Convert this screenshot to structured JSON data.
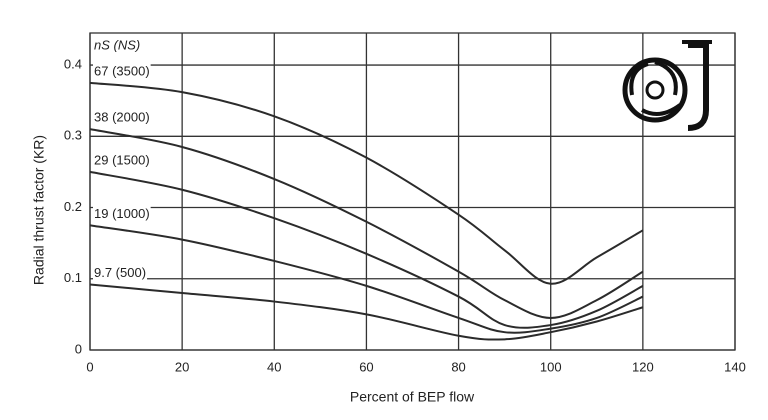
{
  "chart_data": {
    "type": "line",
    "x_label": "Percent of BEP flow",
    "y_label": "Radial thrust factor (KR)",
    "legend_title": "nS (NS)",
    "x": [
      0,
      20,
      40,
      60,
      80,
      90,
      100,
      110,
      120
    ],
    "series": [
      {
        "name": "67 (3500)",
        "color": "#2b2b2b",
        "values": [
          0.375,
          0.362,
          0.328,
          0.27,
          0.19,
          0.14,
          0.093,
          0.13,
          0.168
        ]
      },
      {
        "name": "38 (2000)",
        "color": "#2b2b2b",
        "values": [
          0.31,
          0.285,
          0.24,
          0.18,
          0.11,
          0.07,
          0.045,
          0.07,
          0.11
        ]
      },
      {
        "name": "29 (1500)",
        "color": "#2b2b2b",
        "values": [
          0.25,
          0.225,
          0.185,
          0.135,
          0.075,
          0.035,
          0.035,
          0.055,
          0.09
        ]
      },
      {
        "name": "19 (1000)",
        "color": "#2b2b2b",
        "values": [
          0.175,
          0.155,
          0.125,
          0.09,
          0.045,
          0.025,
          0.03,
          0.045,
          0.075
        ]
      },
      {
        "name": "9.7 (500)",
        "color": "#2b2b2b",
        "values": [
          0.092,
          0.08,
          0.068,
          0.05,
          0.02,
          0.015,
          0.025,
          0.04,
          0.06
        ]
      }
    ],
    "xlim": [
      0,
      140
    ],
    "xticks": [
      0,
      20,
      40,
      60,
      80,
      100,
      120,
      140
    ],
    "ylim": [
      0,
      0.445
    ],
    "yticks": [
      0,
      0.1,
      0.2,
      0.3,
      0.4
    ],
    "grid": true
  }
}
